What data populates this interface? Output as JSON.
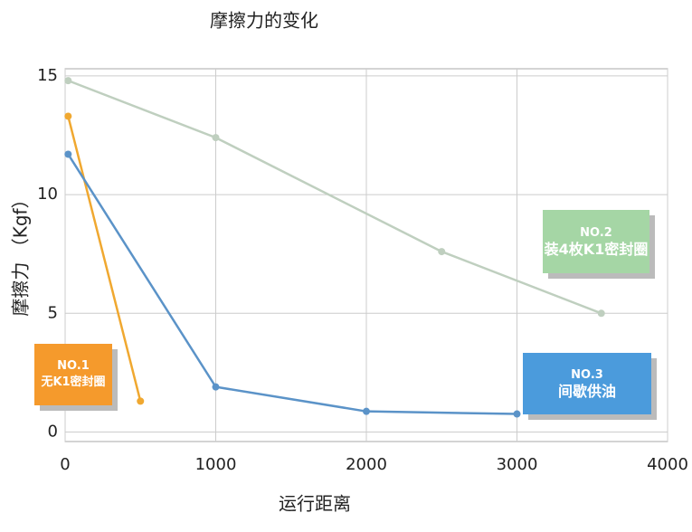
{
  "chart_data": {
    "type": "line",
    "title": "摩擦力的变化",
    "x_label": "运行距离",
    "y_label": "摩擦力 （Kgf）",
    "xlim": [
      0,
      4000
    ],
    "xticks": [
      0,
      1000,
      2000,
      3000,
      4000
    ],
    "ylim": [
      -0.4,
      15.3
    ],
    "yticks": [
      0,
      5,
      10,
      15
    ],
    "grid": true,
    "series": [
      {
        "name": "NO.1",
        "note": "无K1密封圈",
        "color": "#f0a830",
        "box_color": "#f59a2c",
        "x": [
          20,
          500
        ],
        "values": [
          13.3,
          1.3
        ]
      },
      {
        "name": "NO.2",
        "note": "装4枚K1密封圈",
        "color": "#bfcfbf",
        "box_color": "#a5d6a5",
        "x": [
          20,
          1000,
          2500,
          3560
        ],
        "values": [
          14.8,
          12.4,
          7.6,
          5.0
        ]
      },
      {
        "name": "NO.3",
        "note": "间歇供油",
        "color": "#5b93c8",
        "box_color": "#4b9bdc",
        "x": [
          20,
          1000,
          2000,
          3000
        ],
        "values": [
          11.7,
          1.9,
          0.87,
          0.76
        ]
      }
    ]
  }
}
